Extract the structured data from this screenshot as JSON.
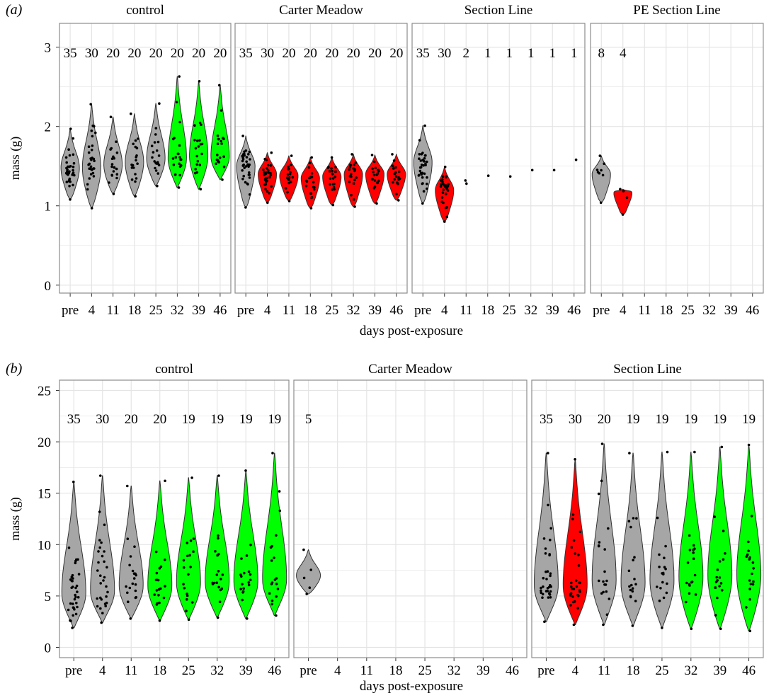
{
  "colors": {
    "gray": "#a6a6a6",
    "red": "#ff0000",
    "green": "#00ff00",
    "point": "#000000",
    "frame": "#8c8c8c",
    "grid": "#e4e4e4"
  },
  "chart_data": [
    {
      "panel_label": "(a)",
      "type": "violin",
      "xlabel": "days post-exposure",
      "ylabel": "mass (g)",
      "ylim": [
        -0.1,
        3.3
      ],
      "yticks": [
        0,
        1,
        2,
        3
      ],
      "categories": [
        "pre",
        "4",
        "11",
        "18",
        "25",
        "32",
        "39",
        "46"
      ],
      "facets": [
        {
          "title": "control",
          "counts": [
            "35",
            "30",
            "20",
            "20",
            "20",
            "20",
            "20",
            "20"
          ],
          "colors": [
            "gray",
            "gray",
            "gray",
            "gray",
            "gray",
            "green",
            "green",
            "green"
          ],
          "min": [
            1.08,
            0.97,
            1.15,
            1.12,
            1.25,
            1.23,
            1.21,
            1.33
          ],
          "max": [
            1.97,
            2.28,
            2.12,
            2.16,
            2.29,
            2.63,
            2.57,
            2.52
          ],
          "median": [
            1.48,
            1.48,
            1.52,
            1.55,
            1.6,
            1.6,
            1.63,
            1.62
          ]
        },
        {
          "title": "Carter Meadow",
          "counts": [
            "35",
            "30",
            "20",
            "20",
            "20",
            "20",
            "20",
            "20"
          ],
          "colors": [
            "gray",
            "red",
            "red",
            "red",
            "red",
            "red",
            "red",
            "red"
          ],
          "min": [
            0.98,
            1.04,
            1.06,
            0.97,
            1.01,
            0.99,
            1.03,
            1.07
          ],
          "max": [
            1.88,
            1.67,
            1.63,
            1.61,
            1.61,
            1.65,
            1.64,
            1.65
          ],
          "median": [
            1.5,
            1.4,
            1.38,
            1.35,
            1.37,
            1.4,
            1.4,
            1.4
          ]
        },
        {
          "title": "Section Line",
          "counts": [
            "35",
            "30",
            "2",
            "1",
            "1",
            "1",
            "1",
            "1"
          ],
          "colors": [
            "gray",
            "red",
            "gray",
            "gray",
            "gray",
            "gray",
            "gray",
            "gray"
          ],
          "min": [
            1.03,
            0.8,
            1.28,
            1.38,
            1.37,
            1.45,
            1.45,
            1.58
          ],
          "max": [
            2.01,
            1.49,
            1.32,
            1.38,
            1.37,
            1.45,
            1.45,
            1.58
          ],
          "median": [
            1.55,
            1.2,
            1.3,
            1.38,
            1.37,
            1.45,
            1.45,
            1.58
          ]
        },
        {
          "title": "PE Section Line",
          "counts": [
            "8",
            "4"
          ],
          "colors": [
            "gray",
            "red"
          ],
          "min": [
            1.04,
            0.89
          ],
          "max": [
            1.63,
            1.21
          ],
          "median": [
            1.4,
            1.18
          ]
        }
      ]
    },
    {
      "panel_label": "(b)",
      "type": "violin",
      "xlabel": "days post-exposure",
      "ylabel": "mass (g)",
      "ylim": [
        -1,
        26
      ],
      "yticks": [
        0,
        5,
        10,
        15,
        20,
        25
      ],
      "categories": [
        "pre",
        "4",
        "11",
        "18",
        "25",
        "32",
        "39",
        "46"
      ],
      "facets": [
        {
          "title": "control",
          "counts": [
            "35",
            "30",
            "20",
            "20",
            "19",
            "19",
            "19",
            "19"
          ],
          "colors": [
            "gray",
            "gray",
            "gray",
            "green",
            "green",
            "green",
            "green",
            "green"
          ],
          "min": [
            1.9,
            2.4,
            2.8,
            2.6,
            2.7,
            2.9,
            2.8,
            3.1
          ],
          "max": [
            16.1,
            16.7,
            15.7,
            16.2,
            16.5,
            16.7,
            17.2,
            18.9
          ],
          "median": [
            5.3,
            5.5,
            6.0,
            6.0,
            6.3,
            6.4,
            6.5,
            6.6
          ]
        },
        {
          "title": "Carter Meadow",
          "counts": [
            "5"
          ],
          "colors": [
            "gray"
          ],
          "min": [
            5.2
          ],
          "max": [
            9.5
          ],
          "median": [
            7.0
          ]
        },
        {
          "title": "Section Line",
          "counts": [
            "35",
            "30",
            "20",
            "19",
            "19",
            "19",
            "19",
            "19"
          ],
          "colors": [
            "gray",
            "red",
            "gray",
            "gray",
            "gray",
            "green",
            "green",
            "green"
          ],
          "min": [
            2.5,
            2.2,
            2.2,
            2.1,
            1.9,
            1.8,
            1.8,
            1.6
          ],
          "max": [
            18.9,
            18.3,
            19.8,
            18.9,
            19.0,
            19.0,
            19.5,
            19.7
          ],
          "median": [
            6.0,
            6.0,
            6.5,
            6.2,
            6.5,
            6.8,
            7.0,
            7.0
          ]
        }
      ]
    }
  ]
}
